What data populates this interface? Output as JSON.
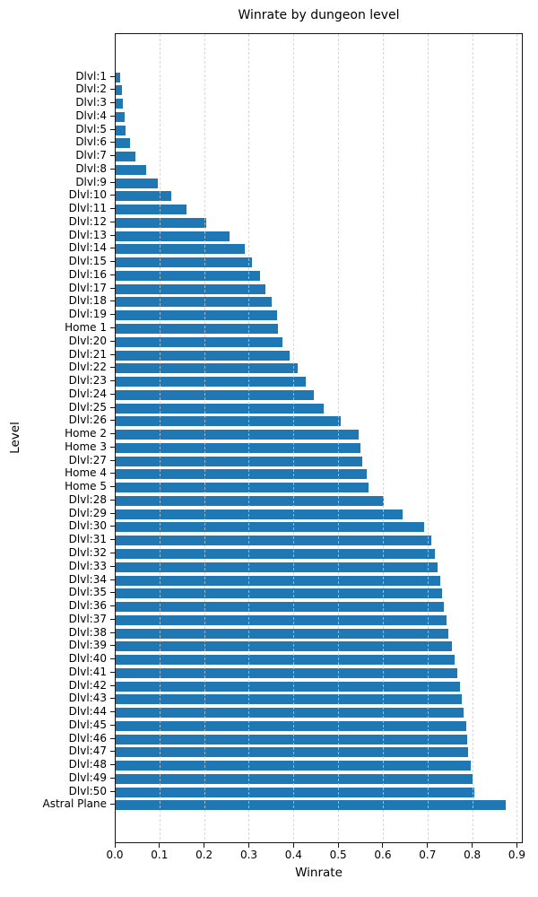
{
  "figure": {
    "background": "#ffffff",
    "text_color": "#000000"
  },
  "chart_data": {
    "type": "bar",
    "orientation": "horizontal",
    "title": "Winrate by dungeon level",
    "xlabel": "Winrate",
    "ylabel": "Level",
    "bar_color": "#1f77b4",
    "grid": "vertical-dashed-lightgray",
    "legend": "none",
    "xlim": [
      0,
      0.912
    ],
    "xtick_values": [
      0.0,
      0.1,
      0.2,
      0.3,
      0.4,
      0.5,
      0.6,
      0.7,
      0.8,
      0.9
    ],
    "xtick_labels": [
      "0.0",
      "0.1",
      "0.2",
      "0.3",
      "0.4",
      "0.5",
      "0.6",
      "0.7",
      "0.8",
      "0.9"
    ],
    "categories": [
      "Dlvl:1",
      "Dlvl:2",
      "Dlvl:3",
      "Dlvl:4",
      "Dlvl:5",
      "Dlvl:6",
      "Dlvl:7",
      "Dlvl:8",
      "Dlvl:9",
      "Dlvl:10",
      "Dlvl:11",
      "Dlvl:12",
      "Dlvl:13",
      "Dlvl:14",
      "Dlvl:15",
      "Dlvl:16",
      "Dlvl:17",
      "Dlvl:18",
      "Dlvl:19",
      "Home 1",
      "Dlvl:20",
      "Dlvl:21",
      "Dlvl:22",
      "Dlvl:23",
      "Dlvl:24",
      "Dlvl:25",
      "Dlvl:26",
      "Home 2",
      "Home 3",
      "Dlvl:27",
      "Home 4",
      "Home 5",
      "Dlvl:28",
      "Dlvl:29",
      "Dlvl:30",
      "Dlvl:31",
      "Dlvl:32",
      "Dlvl:33",
      "Dlvl:34",
      "Dlvl:35",
      "Dlvl:36",
      "Dlvl:37",
      "Dlvl:38",
      "Dlvl:39",
      "Dlvl:40",
      "Dlvl:41",
      "Dlvl:42",
      "Dlvl:43",
      "Dlvl:44",
      "Dlvl:45",
      "Dlvl:46",
      "Dlvl:47",
      "Dlvl:48",
      "Dlvl:49",
      "Dlvl:50",
      "Astral Plane"
    ],
    "values": [
      0.01,
      0.014,
      0.016,
      0.02,
      0.023,
      0.033,
      0.045,
      0.068,
      0.095,
      0.125,
      0.158,
      0.203,
      0.255,
      0.288,
      0.305,
      0.323,
      0.336,
      0.349,
      0.362,
      0.363,
      0.374,
      0.39,
      0.407,
      0.425,
      0.444,
      0.465,
      0.504,
      0.543,
      0.548,
      0.551,
      0.561,
      0.565,
      0.6,
      0.643,
      0.69,
      0.707,
      0.715,
      0.72,
      0.727,
      0.73,
      0.735,
      0.74,
      0.745,
      0.752,
      0.758,
      0.764,
      0.77,
      0.774,
      0.778,
      0.784,
      0.786,
      0.789,
      0.794,
      0.798,
      0.803,
      0.873
    ]
  }
}
